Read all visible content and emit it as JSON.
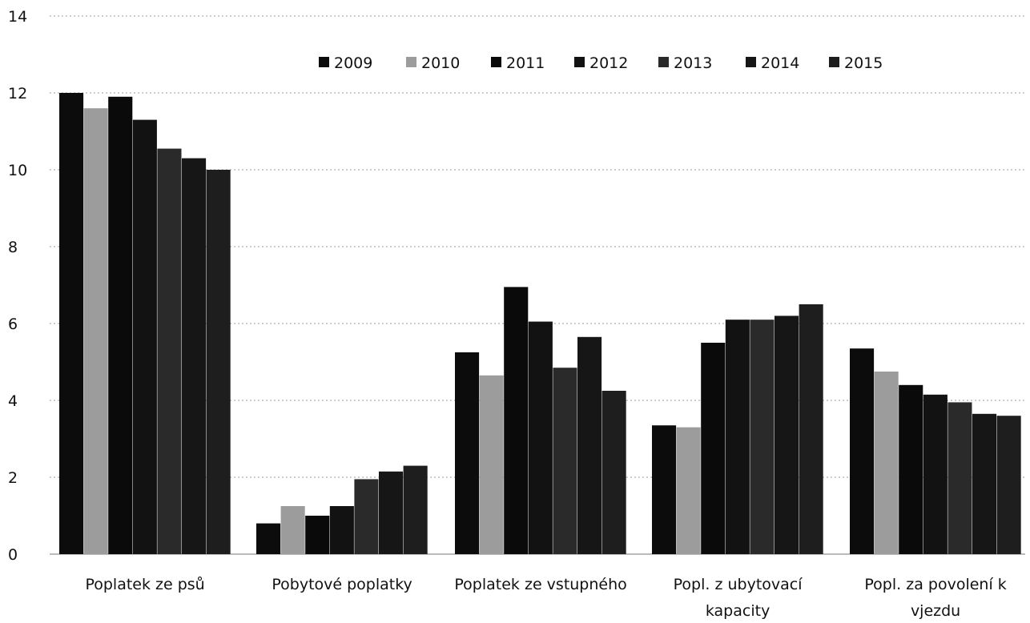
{
  "chart_data": {
    "type": "bar",
    "title": "",
    "xlabel": "",
    "ylabel": "",
    "ylim": [
      0,
      14
    ],
    "yticks": [
      0,
      2,
      4,
      6,
      8,
      10,
      12,
      14
    ],
    "grid": true,
    "legend_position": "top",
    "categories": [
      [
        "Poplatek ze psů"
      ],
      [
        "Pobytové poplatky"
      ],
      [
        "Poplatek ze vstupného"
      ],
      [
        "Popl. z ubytovací",
        "kapacity"
      ],
      [
        "Popl. za povolení k",
        "vjezdu"
      ]
    ],
    "series": [
      {
        "name": "2009",
        "color": "#0c0c0c",
        "values": [
          12.0,
          0.8,
          5.25,
          3.35,
          5.35
        ]
      },
      {
        "name": "2010",
        "color": "#9c9c9c",
        "values": [
          11.6,
          1.25,
          4.65,
          3.3,
          4.75
        ]
      },
      {
        "name": "2011",
        "color": "#0a0a0a",
        "values": [
          11.9,
          1.0,
          6.95,
          5.5,
          4.4
        ]
      },
      {
        "name": "2012",
        "color": "#121212",
        "values": [
          11.3,
          1.25,
          6.05,
          6.1,
          4.15
        ]
      },
      {
        "name": "2013",
        "color": "#2a2a2a",
        "values": [
          10.55,
          1.95,
          4.85,
          6.1,
          3.95
        ]
      },
      {
        "name": "2014",
        "color": "#161616",
        "values": [
          10.3,
          2.15,
          5.65,
          6.2,
          3.65
        ]
      },
      {
        "name": "2015",
        "color": "#1e1e1e",
        "values": [
          10.0,
          2.3,
          4.25,
          6.5,
          3.6
        ]
      }
    ]
  }
}
